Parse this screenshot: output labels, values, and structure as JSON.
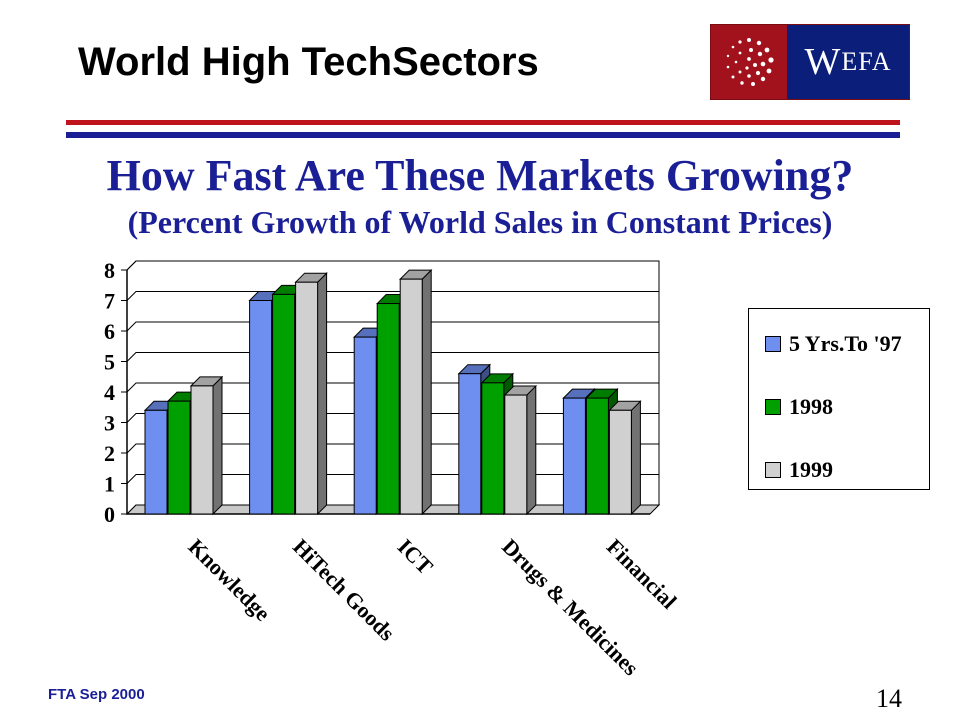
{
  "header": {
    "title": "World High TechSectors",
    "logo_text_big": "W",
    "logo_text_small": "EFA"
  },
  "colors": {
    "logo_red": "#a1121c",
    "logo_blue": "#0b1f7a",
    "rule_red": "#c0141c",
    "rule_blue": "#1a1f96",
    "subtitle": "#1a1f96"
  },
  "subtitle": {
    "main": "How Fast Are These Markets Growing?",
    "sub": "(Percent Growth of World Sales in Constant Prices)"
  },
  "chart_data": {
    "type": "bar",
    "style": "3d-clustered-columns",
    "categories": [
      "Knowledge",
      "HiTech Goods",
      "ICT",
      "Drugs & Medicines",
      "Financial"
    ],
    "series": [
      {
        "name": "5 Yrs.To '97",
        "color": "#6f8ff0",
        "values": [
          3.4,
          7.0,
          5.8,
          4.6,
          3.8
        ]
      },
      {
        "name": "1998",
        "color": "#00a000",
        "values": [
          3.7,
          7.2,
          6.9,
          4.3,
          3.8
        ]
      },
      {
        "name": "1999",
        "color": "#d0d0d0",
        "values": [
          4.2,
          7.6,
          7.7,
          3.9,
          3.4
        ]
      }
    ],
    "yticks": [
      0,
      1,
      2,
      3,
      4,
      5,
      6,
      7,
      8
    ],
    "ylim": [
      0,
      8
    ],
    "grid": true,
    "legend_position": "right"
  },
  "footer": {
    "left": "FTA Sep 2000",
    "page": "14"
  }
}
